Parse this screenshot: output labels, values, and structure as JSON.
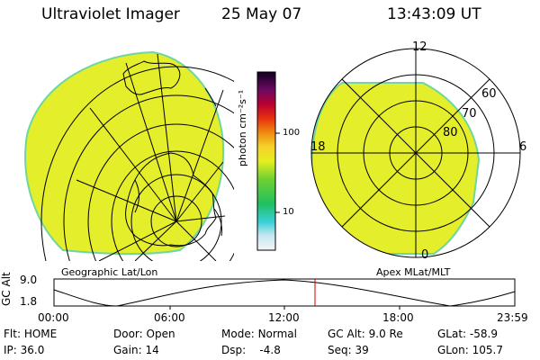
{
  "header": {
    "instrument": "Ultraviolet Imager",
    "date": "25 May 07",
    "time": "13:43:09 UT"
  },
  "left_panel": {
    "label": "Geographic Lat/Lon"
  },
  "right_panel": {
    "label": "Apex MLat/MLT",
    "mlt_labels": {
      "top": "12",
      "left": "18",
      "right": "6",
      "bottom": "0"
    },
    "mlat_labels": [
      "80",
      "70",
      "60"
    ]
  },
  "colorbar": {
    "unit": "photon cm⁻²s⁻¹",
    "ticks": [
      "100",
      "10"
    ]
  },
  "altitude_plot": {
    "ylabel": "GC Alt",
    "yticks": [
      "9.0",
      "1.8"
    ],
    "xticks": [
      "00:00",
      "06:00",
      "12:00",
      "18:00",
      "23:59"
    ]
  },
  "status": {
    "row1": [
      {
        "key": "Flt:",
        "val": "HOME"
      },
      {
        "key": "Door:",
        "val": "Open"
      },
      {
        "key": "Mode:",
        "val": "Normal"
      },
      {
        "key": "GC Alt:",
        "val": "9.0 Re"
      },
      {
        "key": "GLat:",
        "val": "-58.9"
      }
    ],
    "row2": [
      {
        "key": "IP:",
        "val": "36.0"
      },
      {
        "key": "Gain:",
        "val": "14"
      },
      {
        "key": "Dsp:",
        "val": "-4.8"
      },
      {
        "key": "Seq:",
        "val": "39"
      },
      {
        "key": "GLon:",
        "val": "105.7"
      }
    ]
  },
  "colors": {
    "image_fill": "#e4ee2a",
    "image_edge": "#6fd6a0",
    "marker": "#cc0000"
  }
}
